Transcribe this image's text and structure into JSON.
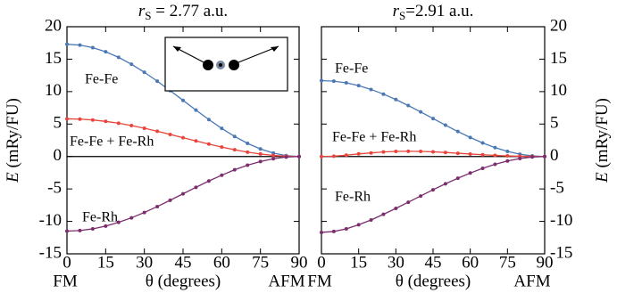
{
  "chart_data": [
    {
      "type": "line",
      "title_symbol": "r",
      "title_subscript": "S",
      "title": " = 2.77 a.u.",
      "xlabel": "θ (degrees)",
      "ylabel_symbol": "E",
      "ylabel": " (mRy/FU)",
      "y_axis_side": "left",
      "x_end_labels": [
        "FM",
        "AFM"
      ],
      "hline": 0,
      "x": [
        0,
        5,
        10,
        15,
        20,
        25,
        30,
        35,
        40,
        45,
        50,
        55,
        60,
        65,
        70,
        75,
        80,
        85,
        90
      ],
      "xlim": [
        0,
        90
      ],
      "xticks": [
        0,
        15,
        30,
        45,
        60,
        75,
        90
      ],
      "ylim": [
        -15,
        20
      ],
      "yticks": [
        -15,
        -10,
        -5,
        0,
        5,
        10,
        15,
        20
      ],
      "series": [
        {
          "name": "Fe-Fe",
          "color": "#4a78b5",
          "values": [
            17.3,
            17.17,
            16.78,
            16.14,
            15.28,
            14.21,
            12.98,
            11.61,
            10.15,
            8.65,
            7.15,
            5.69,
            4.33,
            3.09,
            2.02,
            1.16,
            0.52,
            0.13,
            0
          ]
        },
        {
          "name": "Fe-Fe + Fe-Rh",
          "color": "#e8453c",
          "values": [
            5.8,
            5.76,
            5.63,
            5.41,
            5.13,
            4.76,
            4.35,
            3.89,
            3.4,
            2.9,
            2.4,
            1.91,
            1.45,
            1.04,
            0.67,
            0.39,
            0.17,
            0.04,
            0
          ]
        },
        {
          "name": "Fe-Rh",
          "color": "#7b2d6e",
          "values": [
            -11.5,
            -11.41,
            -11.15,
            -10.73,
            -10.15,
            -9.45,
            -8.63,
            -7.72,
            -6.75,
            -5.75,
            -4.75,
            -3.78,
            -2.88,
            -2.05,
            -1.35,
            -0.77,
            -0.35,
            -0.09,
            0
          ]
        }
      ]
    },
    {
      "type": "line",
      "title_symbol": "r",
      "title_subscript": "S",
      "title": "=2.91 a.u.",
      "xlabel": "θ (degrees)",
      "ylabel_symbol": "E",
      "ylabel": " (mRy/FU)",
      "y_axis_side": "right",
      "x_end_labels": [
        "FM",
        "AFM"
      ],
      "hline": 0,
      "x": [
        0,
        5,
        10,
        15,
        20,
        25,
        30,
        35,
        40,
        45,
        50,
        55,
        60,
        65,
        70,
        75,
        80,
        85,
        90
      ],
      "xlim": [
        0,
        90
      ],
      "xticks": [
        0,
        15,
        30,
        45,
        60,
        75,
        90
      ],
      "ylim": [
        -15,
        20
      ],
      "yticks": [
        -15,
        -10,
        -5,
        0,
        5,
        10,
        15,
        20
      ],
      "series": [
        {
          "name": "Fe-Fe",
          "color": "#4a78b5",
          "values": [
            11.7,
            11.61,
            11.35,
            10.92,
            10.33,
            9.61,
            8.78,
            7.85,
            6.87,
            5.85,
            4.83,
            3.85,
            2.93,
            2.09,
            1.37,
            0.78,
            0.35,
            0.09,
            0
          ]
        },
        {
          "name": "Fe-Fe + Fe-Rh",
          "color": "#e8453c",
          "values": [
            0,
            0.05,
            0.2,
            0.4,
            0.55,
            0.7,
            0.78,
            0.8,
            0.78,
            0.72,
            0.62,
            0.5,
            0.38,
            0.27,
            0.17,
            0.09,
            0.04,
            0.01,
            0
          ]
        },
        {
          "name": "Fe-Rh",
          "color": "#7b2d6e",
          "values": [
            -11.7,
            -11.56,
            -11.15,
            -10.52,
            -9.78,
            -8.91,
            -8.0,
            -7.05,
            -6.09,
            -5.13,
            -4.21,
            -3.35,
            -2.55,
            -1.82,
            -1.2,
            -0.69,
            -0.31,
            -0.08,
            0
          ]
        }
      ]
    }
  ]
}
